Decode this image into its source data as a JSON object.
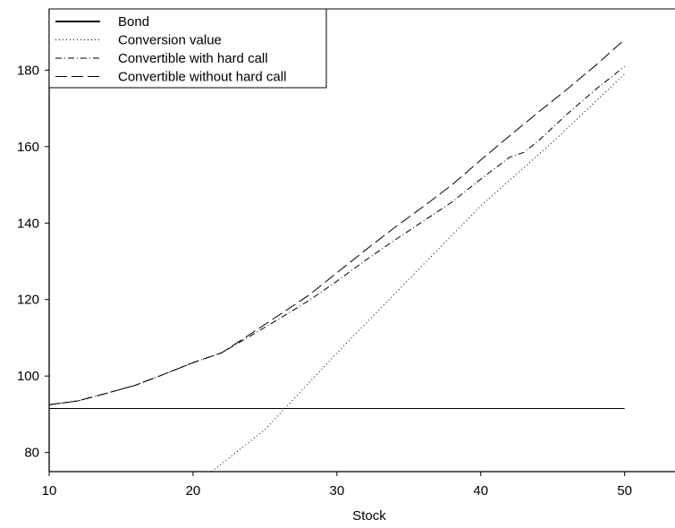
{
  "chart_data": {
    "type": "line",
    "title": "",
    "xlabel": "Stock",
    "ylabel": "",
    "xlim": [
      10,
      53.5
    ],
    "ylim": [
      75,
      196
    ],
    "xticks": [
      10,
      20,
      30,
      40,
      50
    ],
    "yticks": [
      80,
      100,
      120,
      140,
      160,
      180
    ],
    "grid": false,
    "legend_position": "top-left",
    "series": [
      {
        "name": "Bond",
        "style": "solid",
        "x": [
          10,
          50
        ],
        "y": [
          91.5,
          91.5
        ]
      },
      {
        "name": "Conversion value",
        "style": "dotted",
        "x": [
          21.3,
          25,
          30,
          35,
          40,
          45,
          50
        ],
        "y": [
          75,
          86.0,
          106.0,
          125.3,
          144.5,
          161.2,
          179.0
        ]
      },
      {
        "name": "Convertible with hard call",
        "style": "dashdot",
        "x": [
          10,
          12,
          14,
          16,
          18,
          20,
          22,
          24,
          26,
          28,
          30,
          32,
          34,
          36,
          38,
          40,
          42,
          43,
          44,
          46,
          48,
          50
        ],
        "y": [
          92.5,
          93.5,
          95.5,
          97.6,
          100.5,
          103.5,
          106.1,
          110.5,
          115.0,
          119.6,
          124.8,
          130.3,
          135.5,
          140.5,
          145.5,
          151.5,
          157.2,
          158.5,
          161.5,
          168.5,
          175.0,
          181.0
        ]
      },
      {
        "name": "Convertible without hard call",
        "style": "dashed",
        "x": [
          10,
          12,
          14,
          16,
          18,
          20,
          22,
          24,
          26,
          28,
          30,
          32,
          34,
          36,
          38,
          40,
          42,
          44,
          46,
          48,
          50
        ],
        "y": [
          92.5,
          93.5,
          95.5,
          97.6,
          100.5,
          103.5,
          106.1,
          111.0,
          116.0,
          121.0,
          127.0,
          133.0,
          138.8,
          144.3,
          150.0,
          156.5,
          162.8,
          169.0,
          175.0,
          181.3,
          188.0
        ]
      }
    ]
  }
}
